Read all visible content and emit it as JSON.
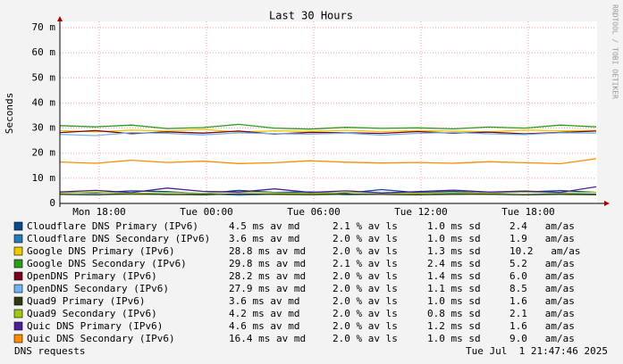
{
  "chart_data": {
    "type": "line",
    "title": "Last 30 Hours",
    "y_label": "Seconds",
    "watermark": "RRDTOOL / TOBI OETIKER",
    "footer_left": "DNS requests",
    "footer_right": "Tue Jul  1 21:47:46 2025",
    "grid": true,
    "xlim": [
      0,
      30
    ],
    "xticks": [
      {
        "value": 2.2,
        "label": "Mon 18:00"
      },
      {
        "value": 8.2,
        "label": "Tue 00:00"
      },
      {
        "value": 14.2,
        "label": "Tue 06:00"
      },
      {
        "value": 20.2,
        "label": "Tue 12:00"
      },
      {
        "value": 26.2,
        "label": "Tue 18:00"
      }
    ],
    "ylim": [
      0,
      0.07
    ],
    "yticks": [
      {
        "value": 0,
        "label": "0"
      },
      {
        "value": 0.01,
        "label": "10 m"
      },
      {
        "value": 0.02,
        "label": "20 m"
      },
      {
        "value": 0.03,
        "label": "30 m"
      },
      {
        "value": 0.04,
        "label": "40 m"
      },
      {
        "value": 0.05,
        "label": "50 m"
      },
      {
        "value": 0.06,
        "label": "60 m"
      },
      {
        "value": 0.07,
        "label": "70 m"
      }
    ],
    "x": [
      0,
      2,
      4,
      6,
      8,
      10,
      12,
      14,
      16,
      18,
      20,
      22,
      24,
      26,
      28,
      30
    ],
    "series": [
      {
        "name": "Cloudflare DNS Primary (IPv6)",
        "color": "#0a4a8c",
        "stats": [
          "4.5 ms av md",
          "2.1 % av ls",
          "1.0 ms sd",
          "2.4   am/as"
        ],
        "values": [
          0.0045,
          0.0042,
          0.005,
          0.0047,
          0.0039,
          0.0052,
          0.0044,
          0.0046,
          0.0041,
          0.0055,
          0.0043,
          0.0048,
          0.004,
          0.0046,
          0.0051,
          0.0044
        ]
      },
      {
        "name": "Cloudflare DNS Secondary (IPv6)",
        "color": "#2a78b8",
        "stats": [
          "3.6 ms av md",
          "2.0 % av ls",
          "1.0 ms sd",
          "1.9   am/as"
        ],
        "values": [
          0.0036,
          0.0034,
          0.004,
          0.0035,
          0.0038,
          0.0033,
          0.0037,
          0.0041,
          0.0035,
          0.0036,
          0.0034,
          0.0039,
          0.0036,
          0.0035,
          0.0038,
          0.0037
        ]
      },
      {
        "name": "Google DNS Primary (IPv6)",
        "color": "#f0c800",
        "stats": [
          "28.8 ms av md",
          "2.0 % av ls",
          "1.3 ms sd",
          "10.2   am/as"
        ],
        "values": [
          0.029,
          0.0285,
          0.0292,
          0.0288,
          0.0295,
          0.0284,
          0.0289,
          0.0287,
          0.0291,
          0.0286,
          0.029,
          0.0288,
          0.0285,
          0.0292,
          0.0289,
          0.0291
        ]
      },
      {
        "name": "Google DNS Secondary (IPv6)",
        "color": "#2e9a1e",
        "stats": [
          "29.8 ms av md",
          "2.1 % av ls",
          "2.4 ms sd",
          "5.2   am/as"
        ],
        "values": [
          0.031,
          0.0305,
          0.0312,
          0.0298,
          0.0302,
          0.0315,
          0.03,
          0.0296,
          0.0303,
          0.0299,
          0.0301,
          0.0297,
          0.0304,
          0.03,
          0.0312,
          0.0305
        ]
      },
      {
        "name": "OpenDNS Primary (IPv6)",
        "color": "#7a0020",
        "stats": [
          "28.2 ms av md",
          "2.0 % av ls",
          "1.4 ms sd",
          "6.0   am/as"
        ],
        "values": [
          0.0282,
          0.029,
          0.0278,
          0.0285,
          0.028,
          0.0288,
          0.0276,
          0.0283,
          0.0281,
          0.0279,
          0.0286,
          0.028,
          0.0284,
          0.0277,
          0.0283,
          0.0288
        ]
      },
      {
        "name": "OpenDNS Secondary (IPv6)",
        "color": "#72b4f0",
        "stats": [
          "27.9 ms av md",
          "2.0 % av ls",
          "1.1 ms sd",
          "8.5   am/as"
        ],
        "values": [
          0.0275,
          0.027,
          0.0282,
          0.0279,
          0.0273,
          0.0281,
          0.0278,
          0.0276,
          0.028,
          0.0272,
          0.0279,
          0.0283,
          0.0277,
          0.0274,
          0.0281,
          0.028
        ]
      },
      {
        "name": "Quad9 Primary (IPv6)",
        "color": "#303a10",
        "stats": [
          "3.6 ms av md",
          "2.0 % av ls",
          "1.0 ms sd",
          "1.6   am/as"
        ],
        "values": [
          0.0036,
          0.0035,
          0.0037,
          0.0036,
          0.0034,
          0.0038,
          0.0036,
          0.0035,
          0.0037,
          0.0036,
          0.0035,
          0.0036,
          0.0037,
          0.0034,
          0.0036,
          0.0035
        ]
      },
      {
        "name": "Quad9 Secondary (IPv6)",
        "color": "#a0c814",
        "stats": [
          "4.2 ms av md",
          "2.0 % av ls",
          "0.8 ms sd",
          "2.1   am/as"
        ],
        "values": [
          0.0042,
          0.0045,
          0.004,
          0.0043,
          0.0041,
          0.0046,
          0.0042,
          0.0039,
          0.0044,
          0.0042,
          0.004,
          0.0043,
          0.0041,
          0.0045,
          0.0042,
          0.0044
        ]
      },
      {
        "name": "Quic DNS Primary (IPv6)",
        "color": "#4a2098",
        "stats": [
          "4.6 ms av md",
          "2.0 % av ls",
          "1.2 ms sd",
          "1.6   am/as"
        ],
        "values": [
          0.0046,
          0.0052,
          0.0043,
          0.0061,
          0.0048,
          0.0045,
          0.0058,
          0.0044,
          0.005,
          0.0042,
          0.0047,
          0.0053,
          0.0045,
          0.0049,
          0.0044,
          0.0066
        ]
      },
      {
        "name": "Quic DNS Secondary (IPv6)",
        "color": "#ff8c00",
        "stats": [
          "16.4 ms av md",
          "2.0 % av ls",
          "1.0 ms sd",
          "9.0   am/as"
        ],
        "values": [
          0.0165,
          0.016,
          0.0172,
          0.0163,
          0.0168,
          0.0159,
          0.0162,
          0.017,
          0.0164,
          0.0161,
          0.0163,
          0.016,
          0.0166,
          0.0162,
          0.0158,
          0.0178
        ]
      }
    ]
  }
}
